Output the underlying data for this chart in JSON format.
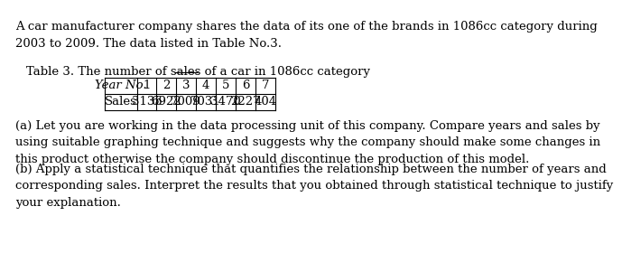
{
  "intro_text": "A car manufacturer company shares the data of its one of the brands in 1086cc category during\n2003 to 2009. The data listed in Table No.3.",
  "table_title": "Table 3. The number of sales of a car in 1086cc category",
  "table_title_underline": "Table 3.",
  "col_headers": [
    "Year No.",
    "1",
    "2",
    "3",
    "4",
    "5",
    "6",
    "7"
  ],
  "row_label": "Sales",
  "sales_values": [
    "3135",
    "6922",
    "7009",
    "7031",
    "3470",
    "2227",
    "404"
  ],
  "part_a": "(a) Let you are working in the data processing unit of this company. Compare years and sales by\nusing suitable graphing technique and suggests why the company should make some changes in\nthis product otherwise the company should discontinue the production of this model.",
  "part_b": "(b) Apply a statistical technique that quantifies the relationship between the number of years and\ncorresponding sales. Interpret the results that you obtained through statistical technique to justify\nyour explanation.",
  "bg_color": "#ffffff",
  "text_color": "#000000",
  "font_size": 9.5,
  "table_font_size": 9.5,
  "title_font_size": 9.5
}
